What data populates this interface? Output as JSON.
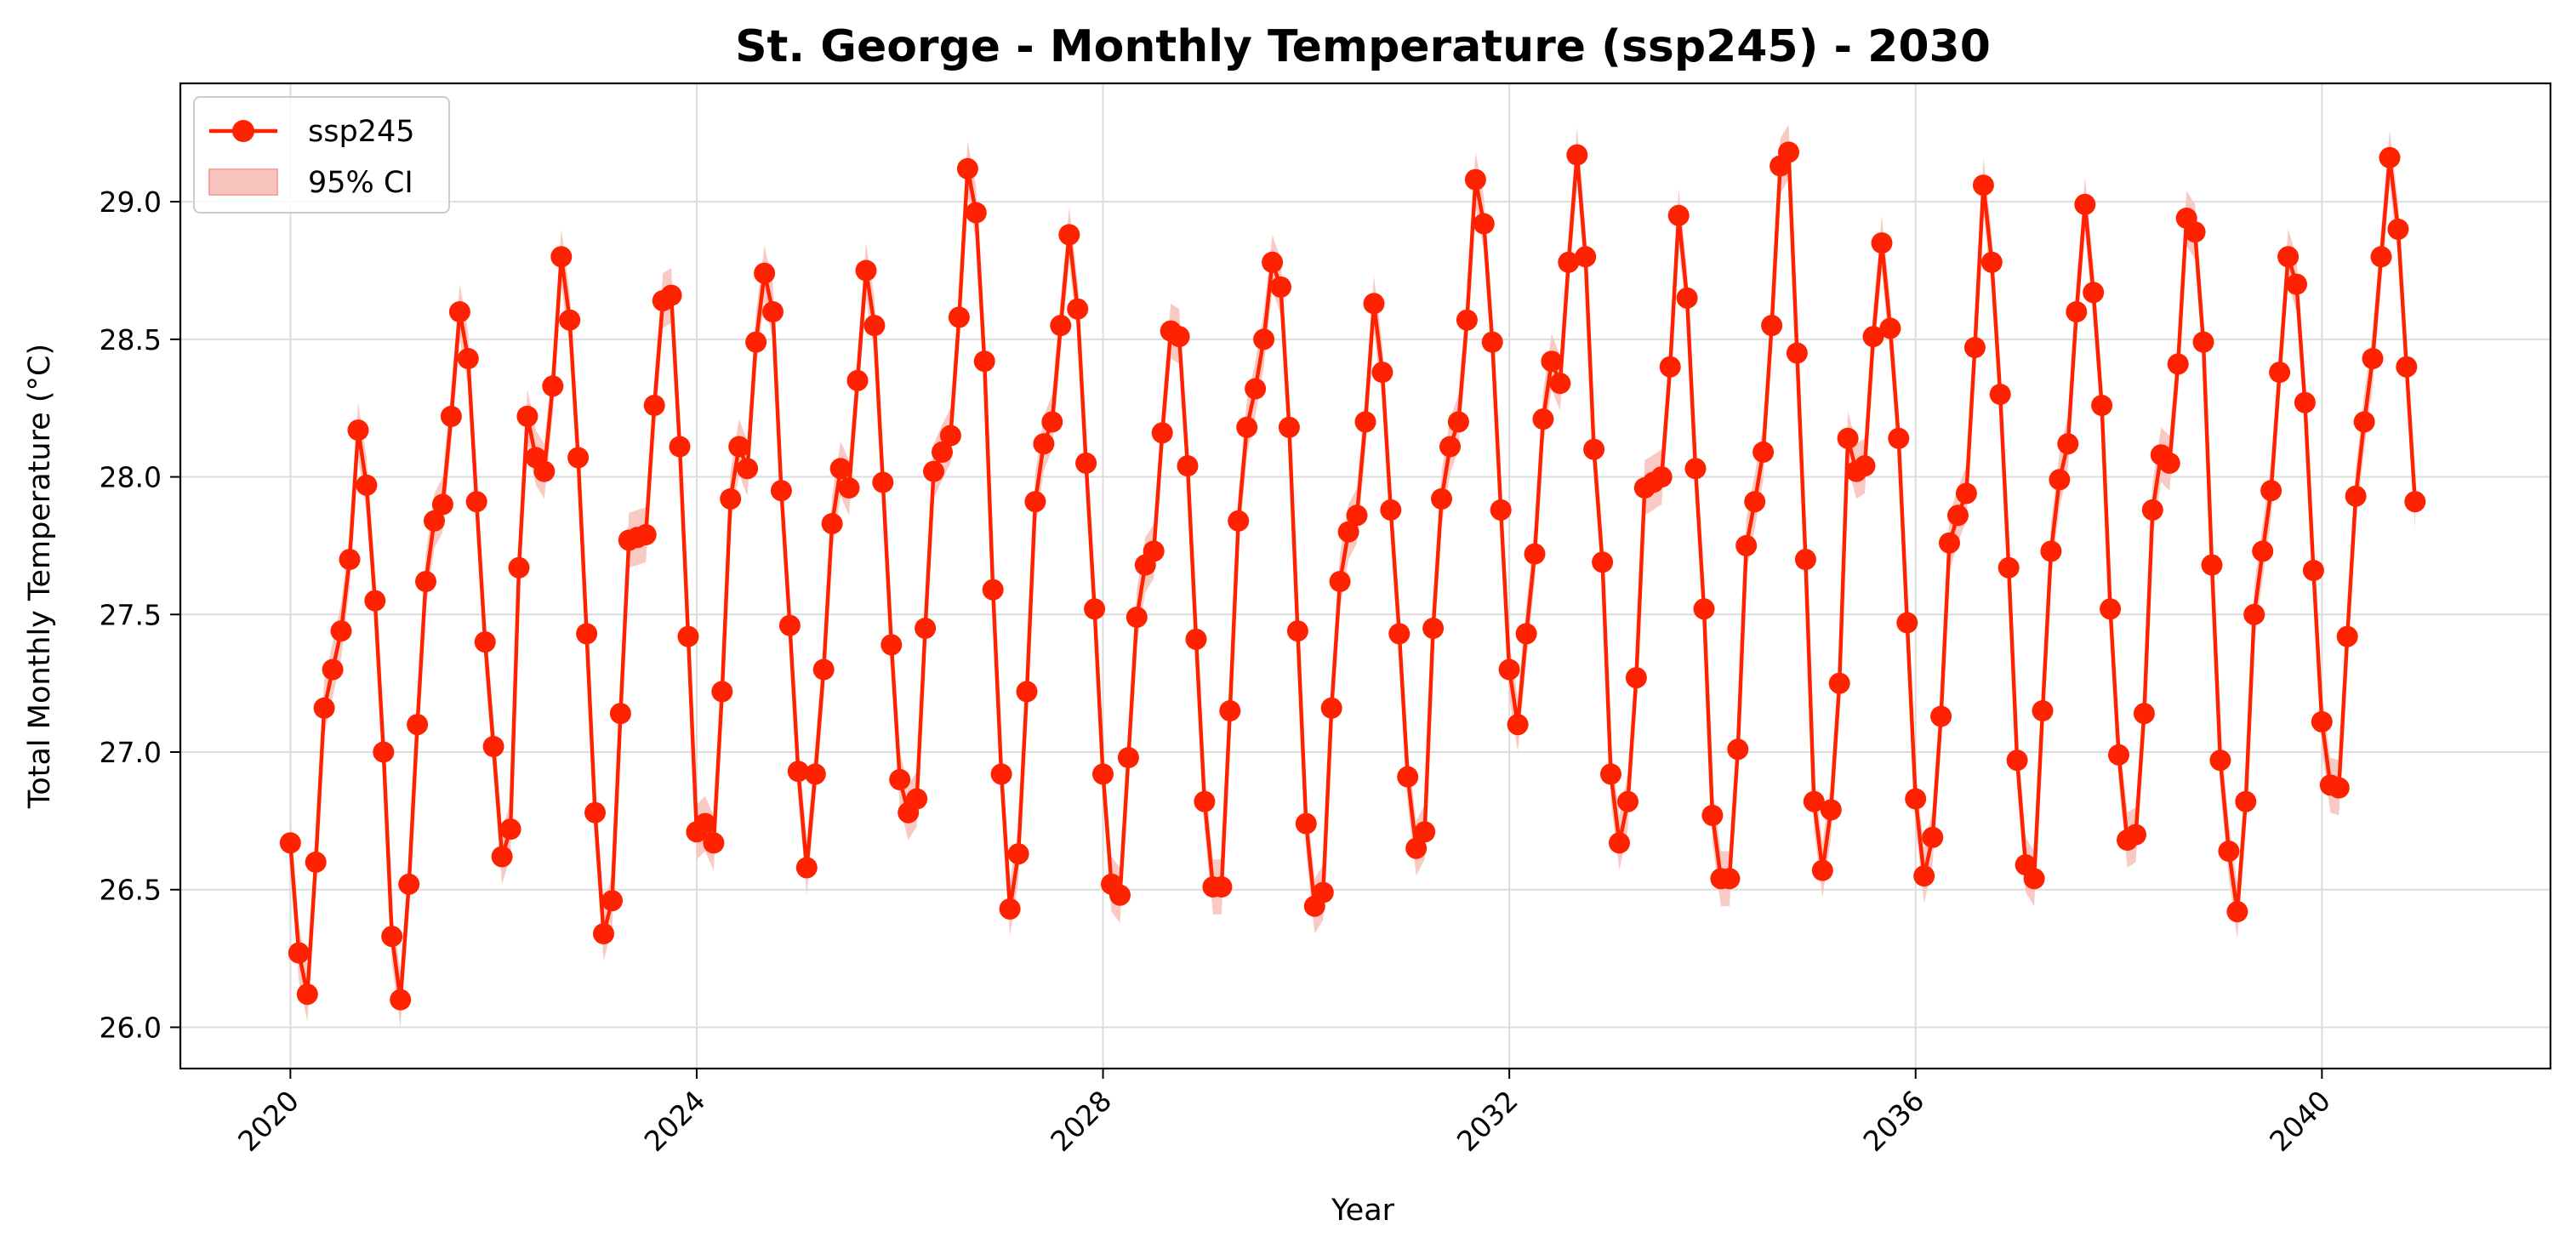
{
  "chart_data": {
    "type": "line",
    "title": "St. George - Monthly Temperature (ssp245) - 2030",
    "xlabel": "Year",
    "ylabel": "Total Monthly Temperature (°C)",
    "x_ticks": [
      "2020",
      "2024",
      "2028",
      "2032",
      "2036",
      "2040"
    ],
    "y_ticks": [
      "26.0",
      "26.5",
      "27.0",
      "27.5",
      "28.0",
      "28.5",
      "29.0"
    ],
    "xlim": [
      "2018-12",
      "2042-04"
    ],
    "ylim": [
      25.85,
      29.43
    ],
    "grid": true,
    "legend_position": "top-left",
    "legend": [
      "ssp245",
      "95% CI"
    ],
    "line_color": "#ff2200",
    "ci_color": "#f8c4bd",
    "start_month": "2020-01",
    "frequency": "monthly",
    "series": [
      {
        "name": "ssp245",
        "ci_halfwidth": 0.1,
        "values": [
          26.67,
          26.27,
          26.12,
          26.6,
          27.16,
          27.3,
          27.44,
          27.7,
          28.17,
          27.97,
          27.55,
          27.0,
          26.33,
          26.1,
          26.52,
          27.1,
          27.62,
          27.84,
          27.9,
          28.22,
          28.6,
          28.43,
          27.91,
          27.4,
          27.02,
          26.62,
          26.72,
          27.67,
          28.22,
          28.07,
          28.02,
          28.33,
          28.8,
          28.57,
          28.07,
          27.43,
          26.78,
          26.34,
          26.46,
          27.14,
          27.77,
          27.78,
          27.79,
          28.26,
          28.64,
          28.66,
          28.11,
          27.42,
          26.71,
          26.74,
          26.67,
          27.22,
          27.92,
          28.11,
          28.03,
          28.49,
          28.74,
          28.6,
          27.95,
          27.46,
          26.93,
          26.58,
          26.92,
          27.3,
          27.83,
          28.03,
          27.96,
          28.35,
          28.75,
          28.55,
          27.98,
          27.39,
          26.9,
          26.78,
          26.83,
          27.45,
          28.02,
          28.09,
          28.15,
          28.58,
          29.12,
          28.96,
          28.42,
          27.59,
          26.92,
          26.43,
          26.63,
          27.22,
          27.91,
          28.12,
          28.2,
          28.55,
          28.88,
          28.61,
          28.05,
          27.52,
          26.92,
          26.52,
          26.48,
          26.98,
          27.49,
          27.68,
          27.73,
          28.16,
          28.53,
          28.51,
          28.04,
          27.41,
          26.82,
          26.51,
          26.51,
          27.15,
          27.84,
          28.18,
          28.32,
          28.5,
          28.78,
          28.69,
          28.18,
          27.44,
          26.74,
          26.44,
          26.49,
          27.16,
          27.62,
          27.8,
          27.86,
          28.2,
          28.63,
          28.38,
          27.88,
          27.43,
          26.91,
          26.65,
          26.71,
          27.45,
          27.92,
          28.11,
          28.2,
          28.57,
          29.08,
          28.92,
          28.49,
          27.88,
          27.3,
          27.1,
          27.43,
          27.72,
          28.21,
          28.42,
          28.34,
          28.78,
          29.17,
          28.8,
          28.1,
          27.69,
          26.92,
          26.67,
          26.82,
          27.27,
          27.96,
          27.98,
          28.0,
          28.4,
          28.95,
          28.65,
          28.03,
          27.52,
          26.77,
          26.54,
          26.54,
          27.01,
          27.75,
          27.91,
          28.09,
          28.55,
          29.13,
          29.18,
          28.45,
          27.7,
          26.82,
          26.57,
          26.79,
          27.25,
          28.14,
          28.02,
          28.04,
          28.51,
          28.85,
          28.54,
          28.14,
          27.47,
          26.83,
          26.55,
          26.69,
          27.13,
          27.76,
          27.86,
          27.94,
          28.47,
          29.06,
          28.78,
          28.3,
          27.67,
          26.97,
          26.59,
          26.54,
          27.15,
          27.73,
          27.99,
          28.12,
          28.6,
          28.99,
          28.67,
          28.26,
          27.52,
          26.99,
          26.68,
          26.7,
          27.14,
          27.88,
          28.08,
          28.05,
          28.41,
          28.94,
          28.89,
          28.49,
          27.68,
          26.97,
          26.64,
          26.42,
          26.82,
          27.5,
          27.73,
          27.95,
          28.38,
          28.8,
          28.7,
          28.27,
          27.66,
          27.11,
          26.88,
          26.87,
          27.42,
          27.93,
          28.2,
          28.43,
          28.8,
          29.16,
          28.9,
          28.4,
          27.91
        ]
      }
    ]
  }
}
